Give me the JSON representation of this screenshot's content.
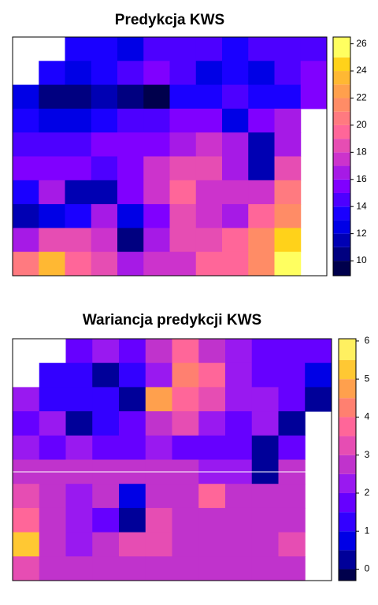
{
  "chart_data": [
    {
      "type": "raster",
      "title": "Predykcja KWS",
      "z": [
        [
          null,
          null,
          14,
          14,
          13,
          15,
          15,
          15,
          14,
          15,
          15,
          15
        ],
        [
          null,
          14,
          13,
          14,
          15,
          16,
          15,
          13,
          14,
          13,
          15,
          16
        ],
        [
          13,
          11,
          11,
          12,
          11,
          10,
          14,
          14,
          15,
          14,
          14,
          16
        ],
        [
          14,
          13,
          13,
          14,
          15,
          15,
          16,
          16,
          13,
          16,
          17,
          null
        ],
        [
          15,
          15,
          15,
          16,
          16,
          16,
          17,
          18,
          17,
          12,
          17,
          null
        ],
        [
          16,
          16,
          16,
          15,
          16,
          18,
          19,
          19,
          17,
          12,
          19,
          null
        ],
        [
          14,
          17,
          12,
          12,
          16,
          18,
          20,
          18,
          18,
          18,
          21,
          null
        ],
        [
          12,
          13,
          14,
          17,
          13,
          16,
          19,
          18,
          17,
          20,
          22,
          null
        ],
        [
          17,
          19,
          19,
          18,
          11,
          17,
          19,
          19,
          20,
          22,
          25,
          null
        ],
        [
          21,
          24,
          20,
          19,
          17,
          18,
          18,
          20,
          20,
          22,
          26,
          null
        ]
      ],
      "breaks": [
        8.9,
        10,
        11,
        12,
        13,
        14,
        15,
        16,
        17,
        18,
        19,
        20,
        21,
        22,
        23,
        24,
        25,
        26.5
      ],
      "colors": [
        "#00004c",
        "#000080",
        "#0000b3",
        "#0000e6",
        "#1a00ff",
        "#4d00ff",
        "#8000ff",
        "#a61ae6",
        "#cc33cc",
        "#e64db3",
        "#ff6699",
        "#ff7a80",
        "#ff8c66",
        "#ffa04d",
        "#ffb833",
        "#ffd21a",
        "#ffff60"
      ],
      "zlim": [
        8.9,
        26.5
      ],
      "zticks": [
        10,
        12,
        14,
        16,
        18,
        20,
        22,
        24,
        26
      ]
    },
    {
      "type": "raster",
      "title": "Wariancja predykcji KWS",
      "z": [
        [
          null,
          null,
          2,
          2.5,
          2,
          3,
          4,
          3,
          2.5,
          2,
          2,
          2
        ],
        [
          null,
          1.5,
          1.2,
          0.2,
          1.5,
          2.5,
          4.5,
          4,
          2.5,
          2,
          2,
          1
        ],
        [
          2.5,
          1.5,
          1.5,
          1.5,
          0.2,
          4.8,
          4,
          3.5,
          2.5,
          2.5,
          2,
          0.2
        ],
        [
          2,
          2.5,
          0.2,
          1.5,
          2,
          3,
          3.5,
          2.5,
          2,
          2.5,
          0.2,
          null
        ],
        [
          2.5,
          2,
          2.5,
          2,
          2,
          2.5,
          2,
          2,
          2,
          0.2,
          2,
          null
        ],
        [
          3,
          3,
          3,
          3,
          3,
          3,
          3,
          2.5,
          2.5,
          0.2,
          3,
          null
        ],
        [
          3.5,
          3,
          2.5,
          3,
          1,
          3,
          3,
          4,
          3,
          3,
          3,
          null
        ],
        [
          4,
          3,
          2.5,
          2,
          0.2,
          3.5,
          3,
          3,
          3,
          3,
          3,
          null
        ],
        [
          5.5,
          3,
          2.5,
          3,
          3.5,
          3.5,
          3,
          3,
          3,
          3,
          3.5,
          null
        ],
        [
          3.5,
          3,
          3,
          3,
          3,
          3,
          3,
          3,
          3,
          3,
          3,
          null
        ]
      ],
      "breaks": [
        -0.3,
        0,
        0.5,
        1,
        1.5,
        2,
        2.5,
        3,
        3.5,
        4,
        4.5,
        5,
        5.5,
        6.06
      ],
      "colors": [
        "#00004c",
        "#000099",
        "#0000e6",
        "#3300ff",
        "#6600ff",
        "#9919f0",
        "#c033cc",
        "#e64db3",
        "#ff6699",
        "#ff8070",
        "#ffa04d",
        "#ffc833",
        "#fff060"
      ],
      "zlim": [
        -0.3,
        6.06
      ],
      "zticks": [
        0,
        1,
        2,
        3,
        4,
        5,
        6
      ]
    }
  ]
}
